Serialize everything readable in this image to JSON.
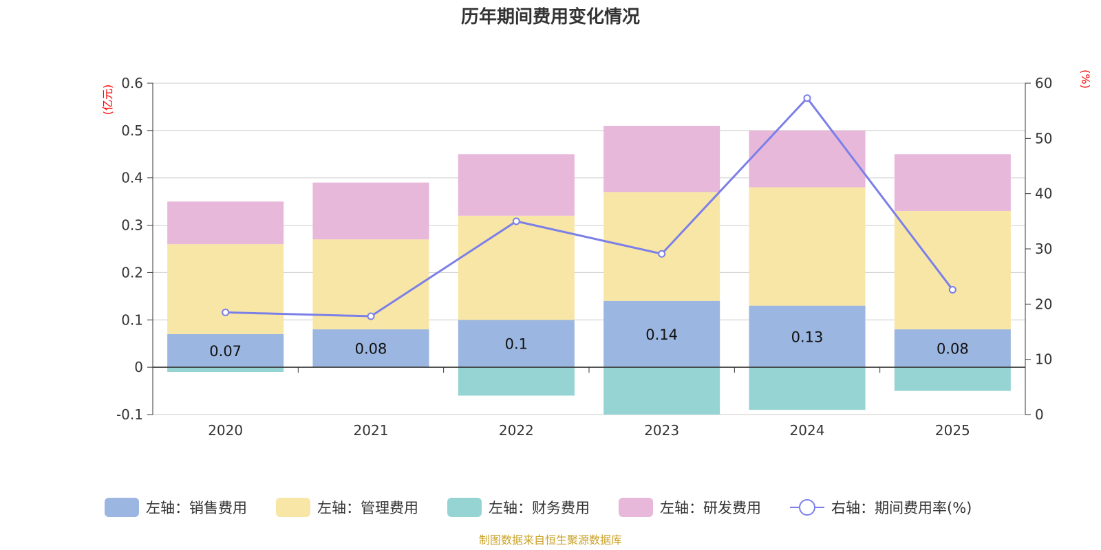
{
  "chart_data": {
    "type": "bar",
    "title": "历年期间费用变化情况",
    "categories": [
      "2020",
      "2021",
      "2022",
      "2023",
      "2024",
      "2025"
    ],
    "left_axis": {
      "unit": "(亿元)",
      "ylim": [
        -0.1,
        0.6
      ],
      "ticks": [
        "-0.1",
        "0",
        "0.1",
        "0.2",
        "0.3",
        "0.4",
        "0.5",
        "0.6"
      ]
    },
    "right_axis": {
      "unit": "(%)",
      "ylim": [
        0,
        60
      ],
      "ticks": [
        "0",
        "10",
        "20",
        "30",
        "40",
        "50",
        "60"
      ]
    },
    "series": [
      {
        "name": "左轴：销售费用",
        "type": "bar",
        "stack": "pos",
        "color": "#9bb6e0",
        "values": [
          0.07,
          0.08,
          0.1,
          0.14,
          0.13,
          0.08
        ],
        "labels": [
          "0.07",
          "0.08",
          "0.1",
          "0.14",
          "0.13",
          "0.08"
        ]
      },
      {
        "name": "左轴：管理费用",
        "type": "bar",
        "stack": "pos",
        "color": "#f8e6a6",
        "values": [
          0.19,
          0.19,
          0.22,
          0.23,
          0.25,
          0.25
        ]
      },
      {
        "name": "左轴：财务费用",
        "type": "bar",
        "stack": "neg",
        "color": "#96d4d4",
        "values": [
          -0.01,
          0,
          -0.06,
          -0.1,
          -0.09,
          -0.05
        ]
      },
      {
        "name": "左轴：研发费用",
        "type": "bar",
        "stack": "pos",
        "color": "#e7b8d9",
        "values": [
          0.09,
          0.12,
          0.13,
          0.14,
          0.12,
          0.12
        ]
      },
      {
        "name": "右轴：期间费用率(%)",
        "type": "line",
        "axis": "right",
        "color": "#7b7fe8",
        "values": [
          18.5,
          17.8,
          35.0,
          29.1,
          57.3,
          22.6
        ]
      }
    ],
    "source": "制图数据来自恒生聚源数据库"
  }
}
